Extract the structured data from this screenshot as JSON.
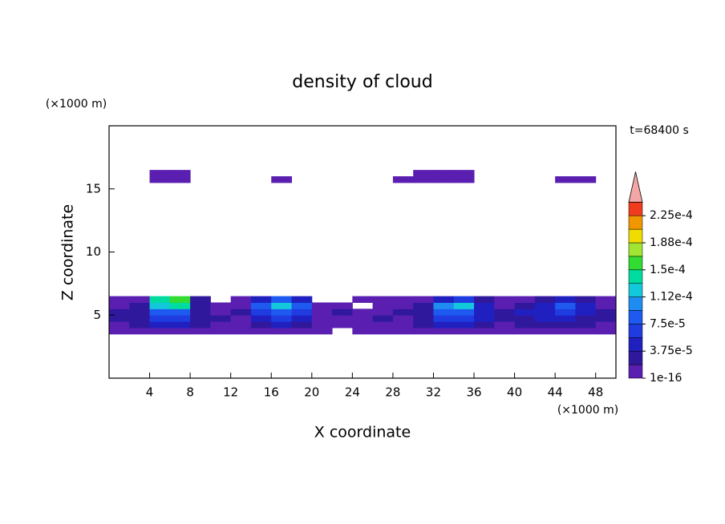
{
  "chart_data": {
    "type": "contour",
    "title": "density of cloud",
    "xlabel": "X coordinate",
    "ylabel": "Z coordinate",
    "x_unit": "(×1000 m)",
    "y_unit": "(×1000 m)",
    "annotation": "t=68400 s",
    "xlim": [
      0,
      50
    ],
    "ylim": [
      0,
      20
    ],
    "xticks": [
      4,
      8,
      12,
      16,
      20,
      24,
      28,
      32,
      36,
      40,
      44,
      48
    ],
    "yticks": [
      5,
      10,
      15
    ],
    "x": [
      1,
      3,
      5,
      7,
      9,
      11,
      13,
      15,
      17,
      19,
      21,
      23,
      25,
      27,
      29,
      31,
      33,
      35,
      37,
      39,
      41,
      43,
      45,
      47,
      49
    ],
    "y": [
      3.75,
      4.25,
      4.75,
      5.25,
      5.75,
      6.25,
      15.75,
      16.25
    ],
    "z": [
      [
        1e-05,
        1e-05,
        1e-05,
        1e-05,
        1e-05,
        1e-05,
        1e-05,
        1e-05,
        1e-05,
        1e-05,
        1e-05,
        0,
        1e-05,
        1e-05,
        1e-05,
        1e-05,
        1e-05,
        1e-05,
        1e-05,
        1e-05,
        1e-05,
        1e-05,
        1e-05,
        1e-05,
        1e-05
      ],
      [
        1e-05,
        2e-05,
        4e-05,
        4e-05,
        2e-05,
        1e-05,
        1e-05,
        3e-05,
        4e-05,
        3e-05,
        1e-05,
        1e-05,
        1e-05,
        1e-05,
        1e-05,
        2e-05,
        4e-05,
        4e-05,
        3e-05,
        1e-05,
        2e-05,
        2e-05,
        3e-05,
        2e-05,
        1e-05
      ],
      [
        2e-05,
        3e-05,
        6e-05,
        7e-05,
        3e-05,
        2e-05,
        1e-05,
        5e-05,
        6e-05,
        5e-05,
        1e-05,
        1e-05,
        1e-05,
        2e-05,
        1e-05,
        3e-05,
        6e-05,
        6e-05,
        4e-05,
        2e-05,
        3e-05,
        4e-05,
        5e-05,
        3e-05,
        2e-05
      ],
      [
        3e-05,
        3e-05,
        8e-05,
        9e-05,
        3e-05,
        1e-05,
        2e-05,
        6e-05,
        8e-05,
        7e-05,
        1e-05,
        2e-05,
        1e-05,
        1e-05,
        2e-05,
        3e-05,
        8e-05,
        9e-05,
        5e-05,
        2e-05,
        4e-05,
        5e-05,
        7e-05,
        4e-05,
        2e-05
      ],
      [
        1e-05,
        2e-05,
        0.00012,
        0.00014,
        3e-05,
        1e-05,
        1e-05,
        9e-05,
        0.00012,
        8e-05,
        1e-05,
        1e-05,
        0,
        1e-05,
        1e-05,
        2e-05,
        0.00011,
        0.00012,
        4e-05,
        1e-05,
        3e-05,
        5e-05,
        9e-05,
        4e-05,
        1e-05
      ],
      [
        1e-05,
        1e-05,
        0.00014,
        0.00016,
        2e-05,
        0,
        1e-05,
        4e-05,
        8e-05,
        4e-05,
        0,
        0,
        1e-05,
        1e-05,
        1e-05,
        1e-05,
        5e-05,
        6e-05,
        2e-05,
        1e-05,
        1e-05,
        2e-05,
        4e-05,
        2e-05,
        1e-05
      ],
      [
        0,
        0,
        1e-05,
        1e-05,
        0,
        0,
        0,
        0,
        1e-05,
        0,
        0,
        0,
        0,
        0,
        1e-05,
        1e-05,
        1e-05,
        1e-05,
        0,
        0,
        0,
        0,
        1e-05,
        1e-05,
        0
      ],
      [
        0,
        0,
        1e-05,
        1e-05,
        0,
        0,
        0,
        0,
        0,
        0,
        0,
        0,
        0,
        0,
        0,
        1e-05,
        1e-05,
        1e-05,
        0,
        0,
        0,
        0,
        0,
        0,
        0
      ]
    ],
    "colorbar": {
      "ticks": [
        1e-16,
        {
          "value": 3.75e-05,
          "label": "3.75e-5"
        },
        {
          "value": 7.5e-05,
          "label": "7.5e-5"
        },
        {
          "value": 0.0001125,
          "label": "1.12e-4"
        },
        {
          "value": 0.00015,
          "label": "1.5e-4"
        },
        {
          "value": 0.0001875,
          "label": "1.88e-4"
        },
        {
          "value": 0.000225,
          "label": "2.25e-4"
        }
      ],
      "colors": [
        "#5a1fb0",
        "#30189c",
        "#2020c0",
        "#1e3ce0",
        "#1e5af0",
        "#1e8cf0",
        "#14c8dc",
        "#00dca0",
        "#32dc32",
        "#a0e632",
        "#f0dc00",
        "#f09600",
        "#f03c1e"
      ],
      "over_color": "#f4a6a6"
    }
  }
}
